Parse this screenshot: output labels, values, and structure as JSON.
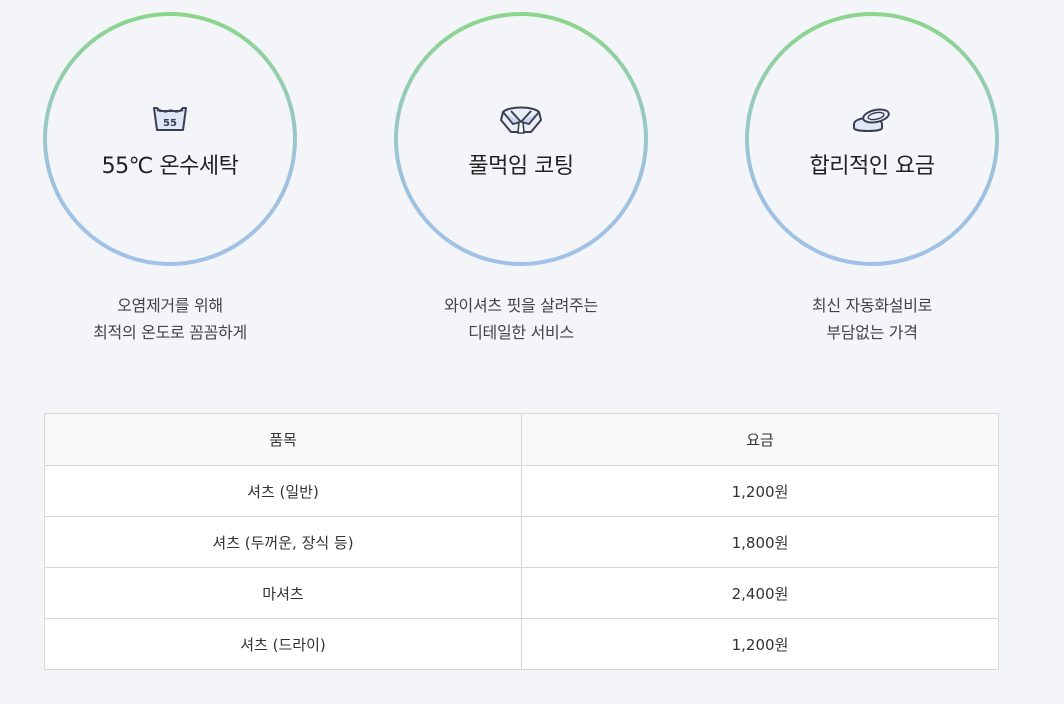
{
  "features": [
    {
      "icon": "wash-55-icon",
      "title": "55℃ 온수세탁",
      "desc_line1": "오염제거를 위해",
      "desc_line2": "최적의 온도로 꼼꼼하게"
    },
    {
      "icon": "shirt-collar-icon",
      "title": "풀먹임 코팅",
      "desc_line1": "와이셔츠 핏을 살려주는",
      "desc_line2": "디테일한 서비스"
    },
    {
      "icon": "coins-icon",
      "title": "합리적인 요금",
      "desc_line1": "최신 자동화설비로",
      "desc_line2": "부담없는 가격"
    }
  ],
  "wash_icon_number": "55",
  "colors": {
    "ring_top": "#8cd689",
    "ring_bottom": "#a2c1e9",
    "background": "#f4f5f9"
  },
  "table": {
    "headers": [
      "품목",
      "요금"
    ],
    "rows": [
      [
        "셔츠 (일반)",
        "1,200원"
      ],
      [
        "셔츠 (두꺼운, 장식 등)",
        "1,800원"
      ],
      [
        "마셔츠",
        "2,400원"
      ],
      [
        "셔츠 (드라이)",
        "1,200원"
      ]
    ]
  }
}
